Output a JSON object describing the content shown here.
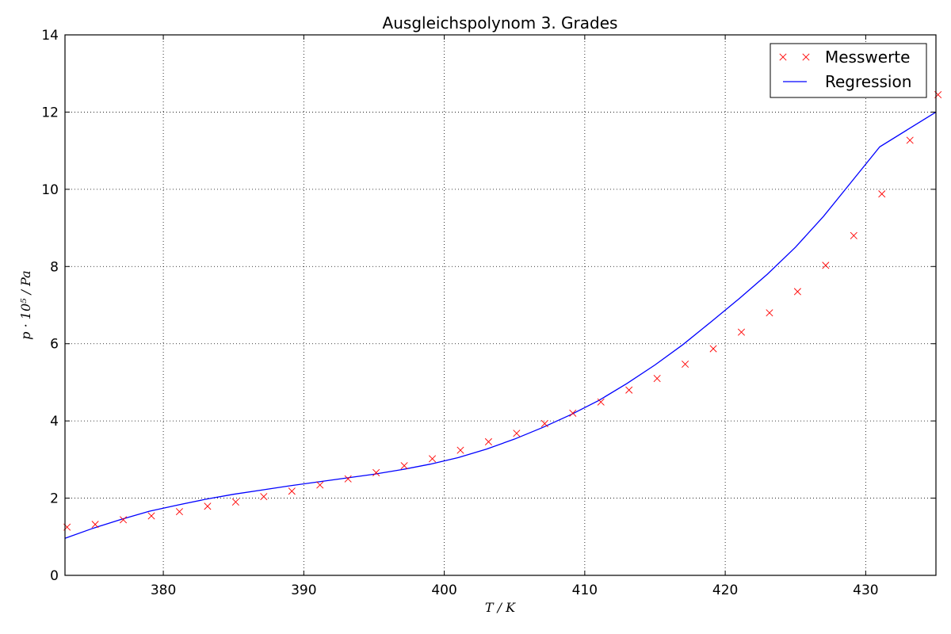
{
  "chart_data": {
    "type": "scatter",
    "title": "Ausgleichspolynom 3. Grades",
    "xlabel": "T / K",
    "ylabel": "p · 10⁵ / Pa",
    "xlim": [
      373,
      435
    ],
    "ylim": [
      0,
      14
    ],
    "xticks": [
      380,
      390,
      400,
      410,
      420,
      430
    ],
    "yticks": [
      0,
      2,
      4,
      6,
      8,
      10,
      12,
      14
    ],
    "grid": true,
    "legend_position": "top-right",
    "series": [
      {
        "name": "Messwerte",
        "kind": "markers",
        "marker": "x",
        "color": "#ff0000",
        "x": [
          373.15,
          375.15,
          377.15,
          379.15,
          381.15,
          383.15,
          385.15,
          387.15,
          389.15,
          391.15,
          393.15,
          395.15,
          397.15,
          399.15,
          401.15,
          403.15,
          405.15,
          407.15,
          409.15,
          411.15,
          413.15,
          415.15,
          417.15,
          419.15,
          421.15,
          423.15,
          425.15,
          427.15,
          429.15,
          431.15,
          433.15,
          435.15
        ],
        "y": [
          1.25,
          1.32,
          1.44,
          1.54,
          1.65,
          1.79,
          1.9,
          2.04,
          2.18,
          2.34,
          2.5,
          2.66,
          2.84,
          3.02,
          3.24,
          3.46,
          3.68,
          3.93,
          4.2,
          4.49,
          4.8,
          5.1,
          5.47,
          5.87,
          6.3,
          6.8,
          7.35,
          8.03,
          8.8,
          9.88,
          11.27,
          12.45
        ]
      },
      {
        "name": "Regression",
        "kind": "line",
        "color": "#0000ff",
        "x": [
          373,
          375,
          377,
          379,
          381,
          383,
          385,
          387,
          389,
          391,
          393,
          395,
          397,
          399,
          401,
          403,
          405,
          407,
          409,
          411,
          413,
          415,
          417,
          419,
          421,
          423,
          425,
          427,
          429,
          431,
          433,
          435
        ],
        "y": [
          0.96,
          1.22,
          1.45,
          1.66,
          1.82,
          1.97,
          2.1,
          2.21,
          2.32,
          2.42,
          2.52,
          2.62,
          2.74,
          2.88,
          3.05,
          3.27,
          3.53,
          3.83,
          4.16,
          4.53,
          4.97,
          5.45,
          5.98,
          6.57,
          7.17,
          7.8,
          8.5,
          9.3,
          10.2,
          11.1,
          11.55,
          12.0
        ]
      }
    ]
  }
}
